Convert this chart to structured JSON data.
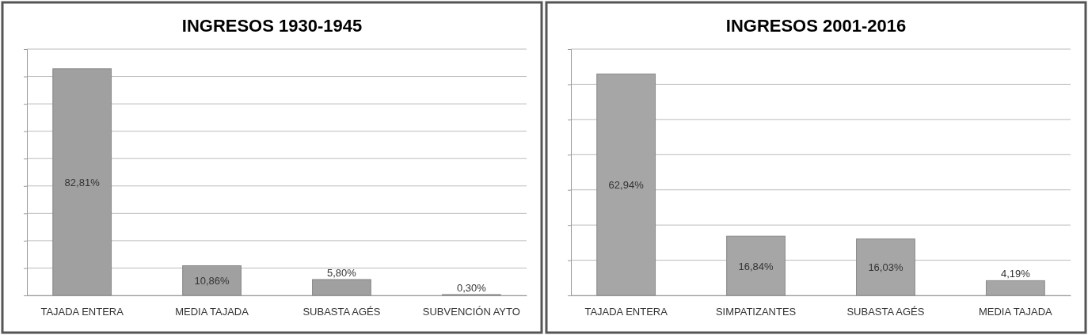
{
  "chart_data": [
    {
      "type": "bar",
      "title": "INGRESOS 1930-1945",
      "categories": [
        "TAJADA ENTERA",
        "MEDIA TAJADA",
        "SUBASTA AGÉS",
        "SUBVENCIÓN AYTO"
      ],
      "values": [
        82.81,
        10.86,
        5.8,
        0.3
      ],
      "value_labels": [
        "82,81%",
        "10,86%",
        "5,80%",
        "0,30%"
      ],
      "color": "#a0a0a0",
      "ylim": [
        0,
        90
      ],
      "yticks": [
        {
          "value": 0,
          "label": null
        },
        {
          "value": 10,
          "label": null
        },
        {
          "value": 20,
          "label": null
        },
        {
          "value": 30,
          "label": null
        },
        {
          "value": 40,
          "label": null
        },
        {
          "value": 50,
          "label": null
        },
        {
          "value": 60,
          "label": null
        },
        {
          "value": 70,
          "label": null
        },
        {
          "value": 80,
          "label": null
        },
        {
          "value": 90,
          "label": null
        }
      ],
      "grid": "y",
      "tick_labels": "x"
    },
    {
      "type": "bar",
      "title": "INGRESOS 2001-2016",
      "categories": [
        "TAJADA ENTERA",
        "SIMPATIZANTES",
        "SUBASTA AGÉS",
        "MEDIA TAJADA"
      ],
      "values": [
        62.94,
        16.84,
        16.03,
        4.19
      ],
      "value_labels": [
        "62,94%",
        "16,84%",
        "16,03%",
        "4,19%"
      ],
      "color": "#a6a6a6",
      "ylim": [
        0,
        70
      ],
      "yticks": [
        {
          "value": 0,
          "label": null
        },
        {
          "value": 10,
          "label": null
        },
        {
          "value": 20,
          "label": null
        },
        {
          "value": 30,
          "label": null
        },
        {
          "value": 40,
          "label": null
        },
        {
          "value": 50,
          "label": null
        },
        {
          "value": 60,
          "label": null
        },
        {
          "value": 70,
          "label": null
        }
      ],
      "grid": "y",
      "tick_labels": "x"
    }
  ]
}
